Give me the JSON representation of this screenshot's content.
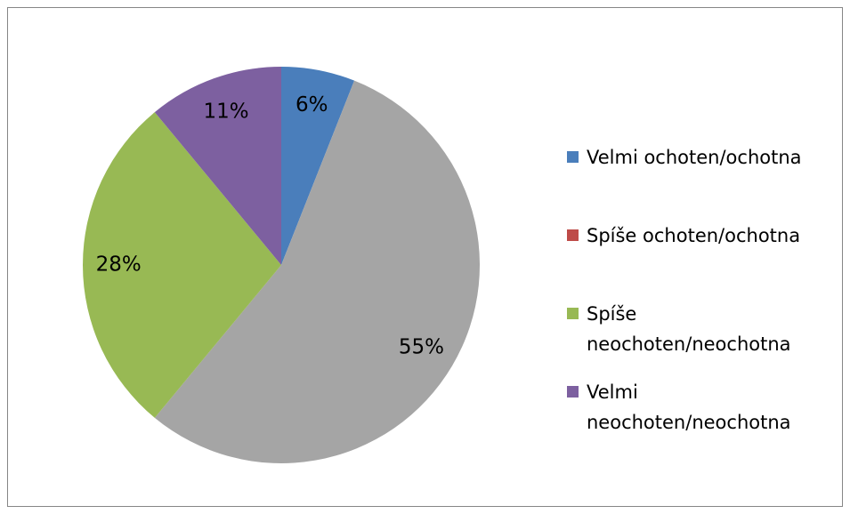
{
  "chart_data": {
    "type": "pie",
    "categories": [
      "Velmi ochoten/ochotna",
      "Spíše ochoten/ochotna",
      "Spíše neochoten/neochotna",
      "Velmi neochoten/neochotna"
    ],
    "values": [
      6,
      55,
      28,
      11
    ],
    "value_labels": [
      "6%",
      "55%",
      "28%",
      "11%"
    ],
    "colors": [
      "#4a7ebb",
      "#a5a5a5",
      "#98b954",
      "#7d60a0"
    ],
    "legend_colors": [
      "#4a7ebb",
      "#be4b48",
      "#98b954",
      "#7d60a0"
    ],
    "legend": "right"
  }
}
